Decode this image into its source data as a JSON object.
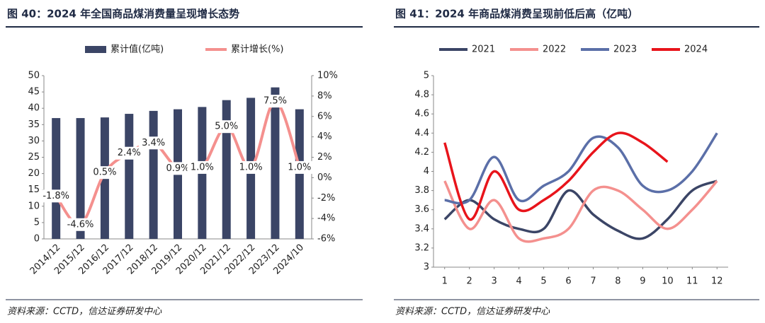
{
  "chart_data": [
    {
      "type": "bar-line",
      "title": "图 40：2024 年全国商品煤消费量呈现增长态势",
      "categories": [
        "2014/12",
        "2015/12",
        "2016/12",
        "2017/12",
        "2018/12",
        "2019/12",
        "2020/12",
        "2021/12",
        "2022/12",
        "2023/12",
        "2024/10"
      ],
      "series": [
        {
          "name": "累计值(亿吨)",
          "color": "#3b4566",
          "type": "bar",
          "values": [
            37,
            37,
            37.2,
            38.3,
            39.2,
            39.7,
            40.4,
            42.5,
            43.2,
            46.4,
            39.7
          ]
        },
        {
          "name": "累计增长(%)",
          "color": "#f4908e",
          "type": "line",
          "axis": "y2",
          "values": [
            -1.8,
            -4.6,
            0.5,
            2.4,
            3.4,
            0.9,
            1.0,
            5.0,
            1.0,
            7.5,
            1.0
          ],
          "value_labels": [
            "-1.8%",
            "-4.6%",
            "0.5%",
            "2.4%",
            "3.4%",
            "0.9%",
            "1.0%",
            "5.0%",
            "1.0%",
            "7.5%",
            "1.0%"
          ]
        }
      ],
      "ylim": [
        0,
        50
      ],
      "yticks": [
        0,
        5,
        10,
        15,
        20,
        25,
        30,
        35,
        40,
        45,
        50
      ],
      "y2lim": [
        -6,
        10
      ],
      "y2ticks": [
        {
          "value": -6,
          "label": "-6%"
        },
        {
          "value": -4,
          "label": "-4%"
        },
        {
          "value": -2,
          "label": "-2%"
        },
        {
          "value": 0,
          "label": "0%"
        },
        {
          "value": 2,
          "label": "2%"
        },
        {
          "value": 4,
          "label": "4%"
        },
        {
          "value": 6,
          "label": "6%"
        },
        {
          "value": 8,
          "label": "8%"
        },
        {
          "value": 10,
          "label": "10%"
        }
      ],
      "source": "资料来源：CCTD，信达证券研发中心"
    },
    {
      "type": "line",
      "title": "图 41：2024 年商品煤消费呈现前低后高（亿吨）",
      "x": [
        1,
        2,
        3,
        4,
        5,
        6,
        7,
        8,
        9,
        10,
        11,
        12
      ],
      "series": [
        {
          "name": "2021",
          "color": "#3b4566",
          "values": [
            3.5,
            3.7,
            3.5,
            3.4,
            3.4,
            3.8,
            3.55,
            3.38,
            3.3,
            3.5,
            3.8,
            3.9
          ]
        },
        {
          "name": "2022",
          "color": "#f4908e",
          "values": [
            3.9,
            3.4,
            3.7,
            3.3,
            3.3,
            3.4,
            3.8,
            3.8,
            3.6,
            3.4,
            3.6,
            3.9
          ]
        },
        {
          "name": "2023",
          "color": "#5b6fa8",
          "values": [
            3.7,
            3.7,
            4.15,
            3.7,
            3.85,
            4.0,
            4.35,
            4.25,
            3.85,
            3.8,
            4.0,
            4.4
          ]
        },
        {
          "name": "2024",
          "color": "#e8141b",
          "values": [
            4.3,
            3.5,
            4.0,
            3.6,
            3.7,
            3.9,
            4.2,
            4.4,
            4.3,
            4.1,
            null,
            null
          ]
        }
      ],
      "xlim": [
        0.55,
        12.45
      ],
      "xticks": [
        1,
        2,
        3,
        4,
        5,
        6,
        7,
        8,
        9,
        10,
        11,
        12
      ],
      "ylim": [
        3,
        5
      ],
      "yticks": [
        3,
        3.2,
        3.4,
        3.6,
        3.8,
        4,
        4.2,
        4.4,
        4.6,
        4.8,
        5
      ],
      "source": "资料来源：CCTD，信达证券研发中心"
    }
  ]
}
